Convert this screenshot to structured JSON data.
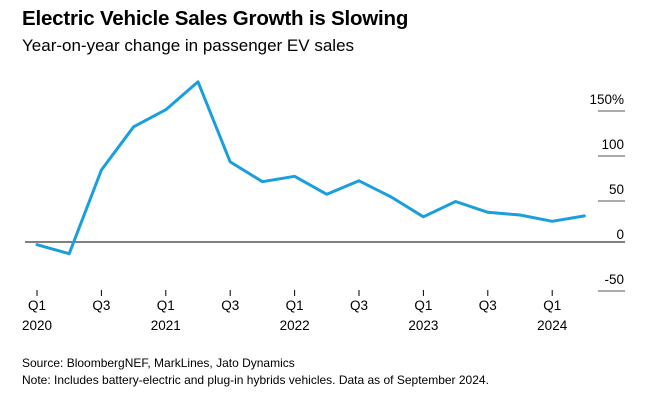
{
  "chart_data": {
    "type": "line",
    "title": "Electric Vehicle Sales Growth is Slowing",
    "subtitle": "Year-on-year change in passenger EV sales",
    "xlabel": "",
    "ylabel": "",
    "ylim": [
      -50,
      150
    ],
    "yticks": [
      {
        "value": 150,
        "label": "150%"
      },
      {
        "value": 100,
        "label": "100"
      },
      {
        "value": 50,
        "label": "50"
      },
      {
        "value": 0,
        "label": "0"
      },
      {
        "value": -50,
        "label": "-50"
      }
    ],
    "x": [
      "Q1 2020",
      "Q2 2020",
      "Q3 2020",
      "Q4 2020",
      "Q1 2021",
      "Q2 2021",
      "Q3 2021",
      "Q4 2021",
      "Q1 2022",
      "Q2 2022",
      "Q3 2022",
      "Q4 2022",
      "Q1 2023",
      "Q2 2023",
      "Q3 2023",
      "Q4 2023",
      "Q1 2024",
      "Q2 2024"
    ],
    "xticks": [
      {
        "index": 0,
        "line1": "Q1",
        "line2": "2020"
      },
      {
        "index": 2,
        "line1": "Q3",
        "line2": ""
      },
      {
        "index": 4,
        "line1": "Q1",
        "line2": "2021"
      },
      {
        "index": 6,
        "line1": "Q3",
        "line2": ""
      },
      {
        "index": 8,
        "line1": "Q1",
        "line2": "2022"
      },
      {
        "index": 10,
        "line1": "Q3",
        "line2": ""
      },
      {
        "index": 12,
        "line1": "Q1",
        "line2": "2023"
      },
      {
        "index": 14,
        "line1": "Q3",
        "line2": ""
      },
      {
        "index": 16,
        "line1": "Q1",
        "line2": "2024"
      }
    ],
    "series": [
      {
        "name": "Passenger EV sales YoY change",
        "color": "#1a9fdc",
        "values": [
          -3,
          -13,
          80,
          128,
          147,
          178,
          89,
          67,
          73,
          53,
          68,
          50,
          28,
          45,
          33,
          30,
          23,
          29
        ]
      }
    ]
  },
  "footer": {
    "source": "Source: BloombergNEF, MarkLines, Jato Dynamics",
    "note": "Note: Includes battery-electric and plug-in hybrids vehicles. Data as of September 2024."
  }
}
